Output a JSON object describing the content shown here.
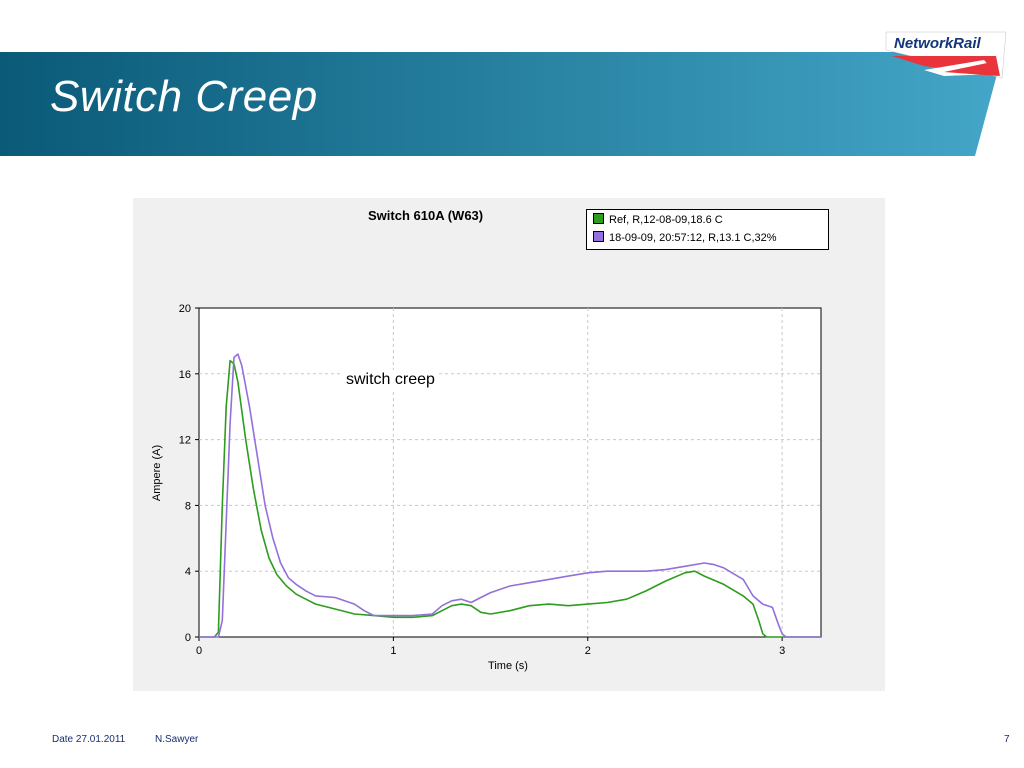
{
  "slide": {
    "title": "Switch Creep",
    "logo_text": "NetworkRail",
    "colors": {
      "banner_left": "#0a5a78",
      "banner_right": "#44a6c8",
      "footer_text": "#1a2d6e"
    }
  },
  "footer": {
    "date": "Date 27.01.2011",
    "author": "N.Sawyer",
    "page_number": "7"
  },
  "chart_data": {
    "type": "line",
    "title": "Switch 610A (W63)",
    "xlabel": "Time (s)",
    "ylabel": "Ampere (A)",
    "xlim": [
      0,
      3.2
    ],
    "ylim": [
      0,
      20
    ],
    "xticks": [
      0,
      1,
      2,
      3
    ],
    "yticks": [
      0,
      4,
      8,
      12,
      16,
      20
    ],
    "grid": true,
    "legend_position": "top-right",
    "annotation": {
      "text": "switch creep",
      "x": 0.8,
      "y": 15.5
    },
    "series": [
      {
        "name": "Ref, R,12-08-09,18.6 C",
        "color": "#2e9c1e",
        "points": [
          [
            0,
            0
          ],
          [
            0.08,
            0
          ],
          [
            0.1,
            0.3
          ],
          [
            0.12,
            8
          ],
          [
            0.14,
            14
          ],
          [
            0.16,
            16.8
          ],
          [
            0.18,
            16.6
          ],
          [
            0.2,
            15.5
          ],
          [
            0.24,
            12
          ],
          [
            0.28,
            9
          ],
          [
            0.32,
            6.5
          ],
          [
            0.36,
            4.8
          ],
          [
            0.4,
            3.8
          ],
          [
            0.45,
            3.1
          ],
          [
            0.5,
            2.6
          ],
          [
            0.55,
            2.3
          ],
          [
            0.6,
            2.0
          ],
          [
            0.7,
            1.7
          ],
          [
            0.8,
            1.4
          ],
          [
            0.9,
            1.3
          ],
          [
            1.0,
            1.2
          ],
          [
            1.1,
            1.2
          ],
          [
            1.2,
            1.3
          ],
          [
            1.25,
            1.6
          ],
          [
            1.3,
            1.9
          ],
          [
            1.35,
            2.0
          ],
          [
            1.4,
            1.9
          ],
          [
            1.45,
            1.5
          ],
          [
            1.5,
            1.4
          ],
          [
            1.6,
            1.6
          ],
          [
            1.7,
            1.9
          ],
          [
            1.8,
            2.0
          ],
          [
            1.9,
            1.9
          ],
          [
            2.0,
            2.0
          ],
          [
            2.1,
            2.1
          ],
          [
            2.2,
            2.3
          ],
          [
            2.3,
            2.8
          ],
          [
            2.4,
            3.4
          ],
          [
            2.5,
            3.9
          ],
          [
            2.55,
            4.0
          ],
          [
            2.6,
            3.7
          ],
          [
            2.7,
            3.2
          ],
          [
            2.8,
            2.5
          ],
          [
            2.85,
            2.0
          ],
          [
            2.88,
            1.0
          ],
          [
            2.9,
            0.2
          ],
          [
            2.92,
            0
          ],
          [
            3.2,
            0
          ]
        ]
      },
      {
        "name": "18-09-09, 20:57:12, R,13.1 C,32%",
        "color": "#9370db",
        "points": [
          [
            0,
            0
          ],
          [
            0.1,
            0
          ],
          [
            0.12,
            1
          ],
          [
            0.14,
            7
          ],
          [
            0.16,
            13
          ],
          [
            0.18,
            17
          ],
          [
            0.2,
            17.2
          ],
          [
            0.22,
            16.5
          ],
          [
            0.26,
            14
          ],
          [
            0.3,
            11
          ],
          [
            0.34,
            8
          ],
          [
            0.38,
            6
          ],
          [
            0.42,
            4.5
          ],
          [
            0.46,
            3.6
          ],
          [
            0.5,
            3.2
          ],
          [
            0.55,
            2.8
          ],
          [
            0.6,
            2.5
          ],
          [
            0.7,
            2.4
          ],
          [
            0.8,
            2.0
          ],
          [
            0.85,
            1.6
          ],
          [
            0.9,
            1.3
          ],
          [
            1.0,
            1.3
          ],
          [
            1.1,
            1.3
          ],
          [
            1.2,
            1.4
          ],
          [
            1.25,
            1.9
          ],
          [
            1.3,
            2.2
          ],
          [
            1.35,
            2.3
          ],
          [
            1.4,
            2.1
          ],
          [
            1.45,
            2.4
          ],
          [
            1.5,
            2.7
          ],
          [
            1.6,
            3.1
          ],
          [
            1.7,
            3.3
          ],
          [
            1.8,
            3.5
          ],
          [
            1.9,
            3.7
          ],
          [
            2.0,
            3.9
          ],
          [
            2.1,
            4.0
          ],
          [
            2.2,
            4.0
          ],
          [
            2.3,
            4.0
          ],
          [
            2.4,
            4.1
          ],
          [
            2.5,
            4.3
          ],
          [
            2.6,
            4.5
          ],
          [
            2.65,
            4.4
          ],
          [
            2.7,
            4.2
          ],
          [
            2.8,
            3.5
          ],
          [
            2.85,
            2.5
          ],
          [
            2.9,
            2.0
          ],
          [
            2.95,
            1.8
          ],
          [
            2.98,
            0.8
          ],
          [
            3.0,
            0.2
          ],
          [
            3.02,
            0
          ],
          [
            3.2,
            0
          ]
        ]
      }
    ]
  }
}
